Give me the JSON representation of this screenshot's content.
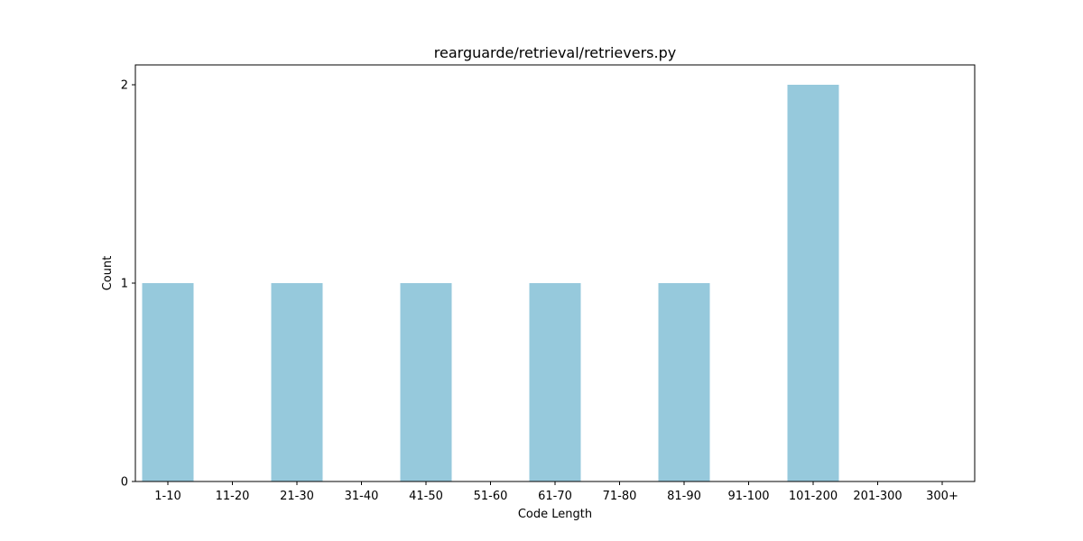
{
  "chart_data": {
    "type": "bar",
    "title": "rearguarde/retrieval/retrievers.py",
    "xlabel": "Code Length",
    "ylabel": "Count",
    "categories": [
      "1-10",
      "11-20",
      "21-30",
      "31-40",
      "41-50",
      "51-60",
      "61-70",
      "71-80",
      "81-90",
      "91-100",
      "101-200",
      "201-300",
      "300+"
    ],
    "values": [
      1,
      0,
      1,
      0,
      1,
      0,
      1,
      0,
      1,
      0,
      2,
      0,
      0
    ],
    "yticks": [
      0,
      1,
      2
    ],
    "ylim": [
      0,
      2.1
    ],
    "grid": false,
    "bar_color": "#96c9dc",
    "axis_color": "#000000"
  }
}
